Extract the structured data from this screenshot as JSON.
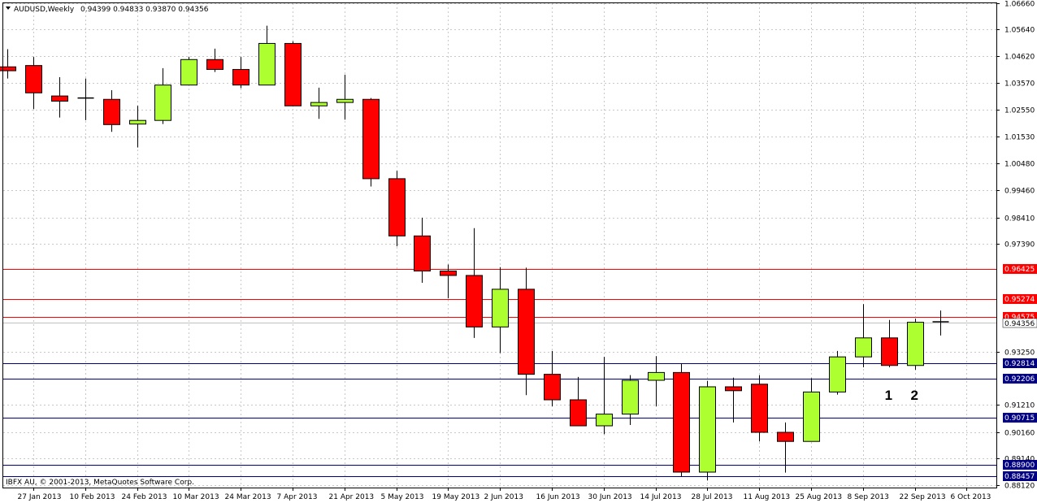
{
  "chart_data": {
    "type": "candlestick",
    "title": "AUDUSD,Weekly",
    "ohlc_readout": "0.94399 0.94833 0.93870 0.94356",
    "copyright": "IBFX AU, © 2001-2013, MetaQuotes Software Corp.",
    "current_price": 0.94356,
    "ylim": [
      0.8812,
      1.0666
    ],
    "y_ticks": [
      "1.06660",
      "1.05640",
      "1.04620",
      "1.03570",
      "1.02550",
      "1.01530",
      "1.00480",
      "0.99460",
      "0.98410",
      "0.97390",
      "0.93250",
      "0.91210",
      "0.90160",
      "0.89140",
      "0.88120"
    ],
    "x_labels": [
      "27 Jan 2013",
      "10 Feb 2013",
      "24 Feb 2013",
      "10 Mar 2013",
      "24 Mar 2013",
      "7 Apr 2013",
      "21 Apr 2013",
      "5 May 2013",
      "19 May 2013",
      "2 Jun 2013",
      "16 Jun 2013",
      "30 Jun 2013",
      "14 Jul 2013",
      "28 Jul 2013",
      "11 Aug 2013",
      "25 Aug 2013",
      "8 Sep 2013",
      "22 Sep 2013",
      "6 Oct 2013"
    ],
    "first_week_partial": true,
    "candles": [
      {
        "o": 1.042,
        "h": 1.0488,
        "l": 1.0375,
        "c": 1.0405
      },
      {
        "o": 1.0425,
        "h": 1.0458,
        "l": 1.0258,
        "c": 1.032
      },
      {
        "o": 1.0308,
        "h": 1.038,
        "l": 1.0225,
        "c": 1.0288
      },
      {
        "o": 1.03,
        "h": 1.0375,
        "l": 1.0215,
        "c": 1.0298
      },
      {
        "o": 1.0295,
        "h": 1.033,
        "l": 1.017,
        "c": 1.0198
      },
      {
        "o": 1.02,
        "h": 1.027,
        "l": 1.011,
        "c": 1.0214
      },
      {
        "o": 1.0214,
        "h": 1.0415,
        "l": 1.02,
        "c": 1.035
      },
      {
        "o": 1.035,
        "h": 1.0458,
        "l": 1.035,
        "c": 1.0448
      },
      {
        "o": 1.0448,
        "h": 1.049,
        "l": 1.04,
        "c": 1.041
      },
      {
        "o": 1.041,
        "h": 1.0458,
        "l": 1.0338,
        "c": 1.035
      },
      {
        "o": 1.035,
        "h": 1.0578,
        "l": 1.035,
        "c": 1.051
      },
      {
        "o": 1.051,
        "h": 1.0518,
        "l": 1.0268,
        "c": 1.027
      },
      {
        "o": 1.027,
        "h": 1.034,
        "l": 1.022,
        "c": 1.0283
      },
      {
        "o": 1.0283,
        "h": 1.039,
        "l": 1.0217,
        "c": 1.0295
      },
      {
        "o": 1.0295,
        "h": 1.03,
        "l": 0.996,
        "c": 0.999
      },
      {
        "o": 0.999,
        "h": 1.002,
        "l": 0.973,
        "c": 0.977
      },
      {
        "o": 0.977,
        "h": 0.984,
        "l": 0.959,
        "c": 0.9635
      },
      {
        "o": 0.9635,
        "h": 0.966,
        "l": 0.953,
        "c": 0.9618
      },
      {
        "o": 0.9618,
        "h": 0.98,
        "l": 0.9378,
        "c": 0.942
      },
      {
        "o": 0.942,
        "h": 0.965,
        "l": 0.932,
        "c": 0.9565
      },
      {
        "o": 0.9565,
        "h": 0.9648,
        "l": 0.9158,
        "c": 0.9238
      },
      {
        "o": 0.9238,
        "h": 0.9328,
        "l": 0.9115,
        "c": 0.914
      },
      {
        "o": 0.914,
        "h": 0.9228,
        "l": 0.904,
        "c": 0.904
      },
      {
        "o": 0.904,
        "h": 0.9305,
        "l": 0.9008,
        "c": 0.9085
      },
      {
        "o": 0.9085,
        "h": 0.9235,
        "l": 0.9043,
        "c": 0.9215
      },
      {
        "o": 0.9215,
        "h": 0.9308,
        "l": 0.9115,
        "c": 0.9245
      },
      {
        "o": 0.9245,
        "h": 0.928,
        "l": 0.8845,
        "c": 0.8862
      },
      {
        "o": 0.8862,
        "h": 0.9213,
        "l": 0.883,
        "c": 0.919
      },
      {
        "o": 0.919,
        "h": 0.9225,
        "l": 0.9053,
        "c": 0.9175
      },
      {
        "o": 0.92,
        "h": 0.9235,
        "l": 0.898,
        "c": 0.9015
      },
      {
        "o": 0.9015,
        "h": 0.9053,
        "l": 0.886,
        "c": 0.898
      },
      {
        "o": 0.898,
        "h": 0.9223,
        "l": 0.898,
        "c": 0.917
      },
      {
        "o": 0.917,
        "h": 0.9328,
        "l": 0.916,
        "c": 0.9305
      },
      {
        "o": 0.9305,
        "h": 0.9508,
        "l": 0.9265,
        "c": 0.9378
      },
      {
        "o": 0.9378,
        "h": 0.9447,
        "l": 0.9265,
        "c": 0.9272
      },
      {
        "o": 0.9272,
        "h": 0.9452,
        "l": 0.9255,
        "c": 0.9438
      },
      {
        "o": 0.94399,
        "h": 0.94833,
        "l": 0.9387,
        "c": 0.94356
      }
    ],
    "bull_color": "#adff2f",
    "bear_color": "#ff0000",
    "resistance_color": "#ff0000",
    "support_color": "#000080",
    "levels": [
      {
        "value": 0.96425,
        "label": "0.96425",
        "kind": "resistance"
      },
      {
        "value": 0.95274,
        "label": "0.95274",
        "kind": "resistance"
      },
      {
        "value": 0.94575,
        "label": "0.94575",
        "kind": "resistance"
      },
      {
        "value": 0.92814,
        "label": "0.92814",
        "kind": "support"
      },
      {
        "value": 0.92206,
        "label": "0.92206",
        "kind": "support"
      },
      {
        "value": 0.90715,
        "label": "0.90715",
        "kind": "support"
      },
      {
        "value": 0.889,
        "label": "0.88900",
        "kind": "support"
      },
      {
        "value": 0.88457,
        "label": "0.88457",
        "kind": "support"
      }
    ],
    "annotations": [
      {
        "text": "1",
        "candle": 34
      },
      {
        "text": "2",
        "candle": 35
      }
    ],
    "grid": true
  }
}
